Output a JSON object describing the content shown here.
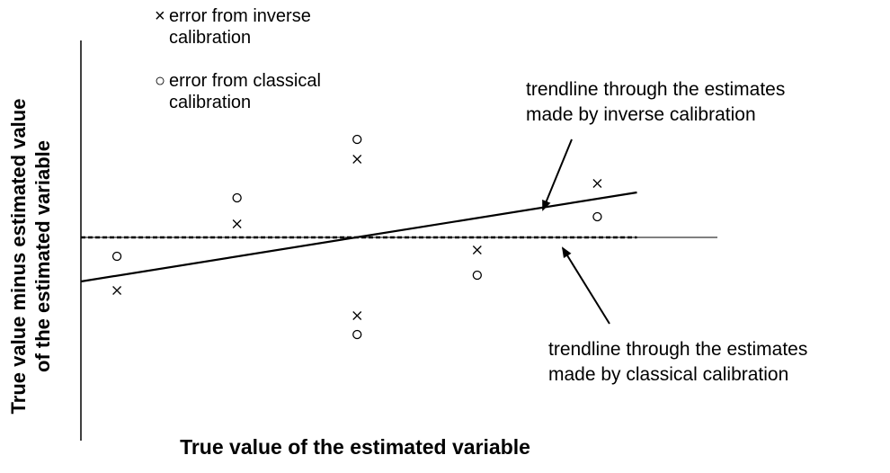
{
  "chart_data": {
    "type": "scatter",
    "xlabel": "True value of the estimated variable",
    "ylabel": [
      "True value minus estimated value",
      "of the estimated variable"
    ],
    "xlim": [
      0.7,
      6.0
    ],
    "ylim": [
      -22.6,
      21.9
    ],
    "series": [
      {
        "name": "error from inverse calibration",
        "marker": "x",
        "color": "#000000",
        "x": [
          1,
          2,
          3,
          3,
          4,
          5
        ],
        "values": [
          -5.9,
          1.5,
          8.7,
          -8.7,
          -1.4,
          6.0
        ]
      },
      {
        "name": "error from classical calibration",
        "marker": "o",
        "color": "#000000",
        "x": [
          1,
          2,
          3,
          3,
          4,
          5
        ],
        "values": [
          -2.1,
          4.4,
          10.9,
          -10.8,
          -4.2,
          2.3
        ]
      }
    ],
    "trendlines": [
      {
        "x": [
          0.7,
          5.33
        ],
        "values": [
          -4.9,
          5.0
        ],
        "dash": false
      },
      {
        "x": [
          0.7,
          5.33
        ],
        "values": [
          0,
          0
        ],
        "dash": true
      }
    ],
    "annotations": [
      {
        "lines": [
          "trendline through the estimates",
          "made by inverse calibration"
        ]
      },
      {
        "lines": [
          "trendline through the estimates",
          "made by classical calibration"
        ]
      }
    ]
  }
}
